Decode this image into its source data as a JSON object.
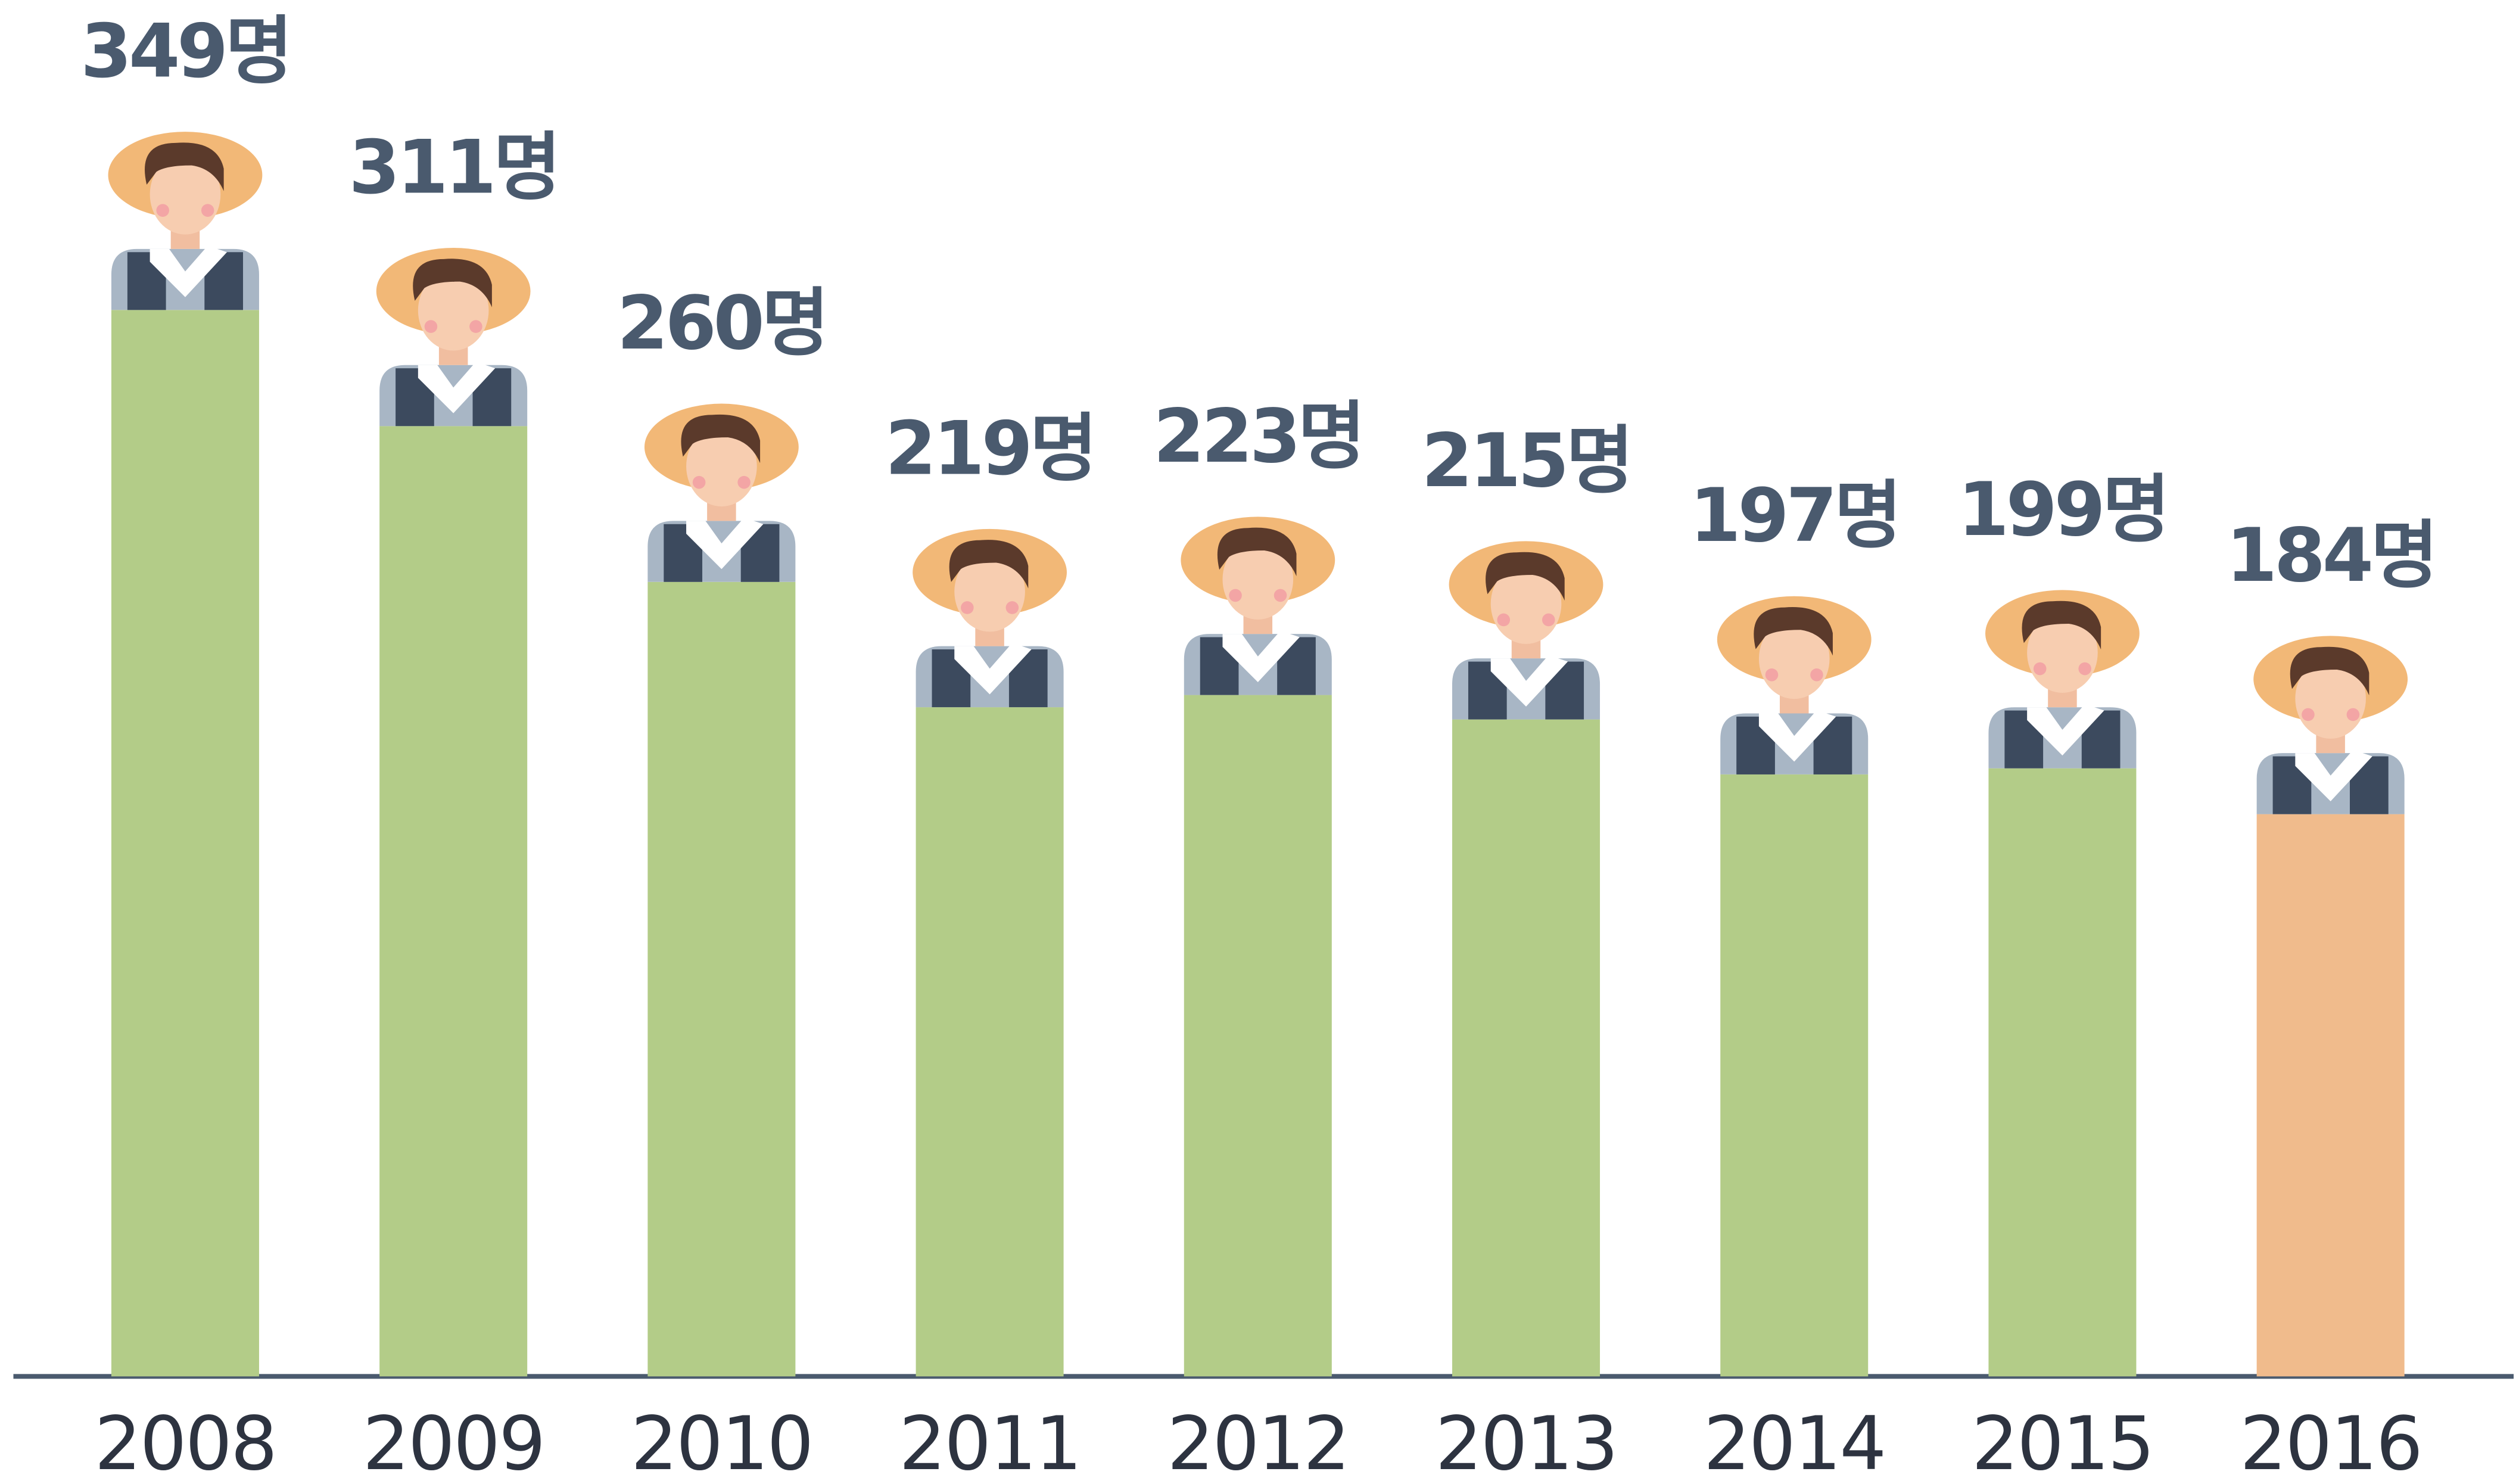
{
  "chart_data": {
    "type": "bar",
    "categories": [
      "2008",
      "2009",
      "2010",
      "2011",
      "2012",
      "2013",
      "2014",
      "2015",
      "2016"
    ],
    "values": [
      349,
      311,
      260,
      219,
      223,
      215,
      197,
      199,
      184
    ],
    "value_labels": [
      "349명",
      "311명",
      "260명",
      "219명",
      "223명",
      "215명",
      "197명",
      "199명",
      "184명"
    ],
    "colors": [
      "#b3cc88",
      "#b3cc88",
      "#b3cc88",
      "#b3cc88",
      "#b3cc88",
      "#b3cc88",
      "#b3cc88",
      "#b3cc88",
      "#f0bb8c"
    ]
  }
}
